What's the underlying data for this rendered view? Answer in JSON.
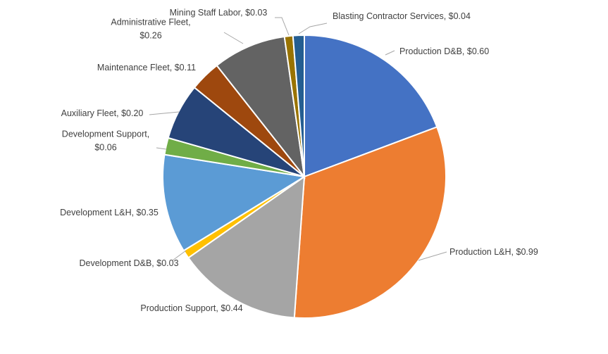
{
  "chart_data": {
    "type": "pie",
    "title": "",
    "start_angle_deg": 0,
    "direction": "clockwise",
    "slices": [
      {
        "name": "Production D&B",
        "value": 0.6,
        "label": "Production D&B, $0.60",
        "color": "#4472C4"
      },
      {
        "name": "Production L&H",
        "value": 0.99,
        "label": "Production L&H, $0.99",
        "color": "#ED7D31"
      },
      {
        "name": "Production Support",
        "value": 0.44,
        "label": "Production Support, $0.44",
        "color": "#A5A5A5"
      },
      {
        "name": "Development D&B",
        "value": 0.03,
        "label": "Development D&B, $0.03",
        "color": "#FFC000"
      },
      {
        "name": "Development L&H",
        "value": 0.35,
        "label": "Development L&H, $0.35",
        "color": "#5B9BD5"
      },
      {
        "name": "Development Support",
        "value": 0.06,
        "label_lines": [
          "Development Support,",
          "$0.06"
        ],
        "color": "#70AD47"
      },
      {
        "name": "Auxiliary Fleet",
        "value": 0.2,
        "label": "Auxiliary Fleet, $0.20",
        "color": "#264478"
      },
      {
        "name": "Maintenance Fleet",
        "value": 0.11,
        "label": "Maintenance Fleet, $0.11",
        "color": "#9E480E"
      },
      {
        "name": "Administrative Fleet",
        "value": 0.26,
        "label_lines": [
          "Administrative Fleet,",
          "$0.26"
        ],
        "color": "#636363"
      },
      {
        "name": "Mining Staff Labor",
        "value": 0.03,
        "label": "Mining Staff Labor, $0.03",
        "color": "#997300"
      },
      {
        "name": "Blasting Contractor Services",
        "value": 0.04,
        "label": "Blasting Contractor Services, $0.04",
        "color": "#255E91"
      }
    ]
  }
}
